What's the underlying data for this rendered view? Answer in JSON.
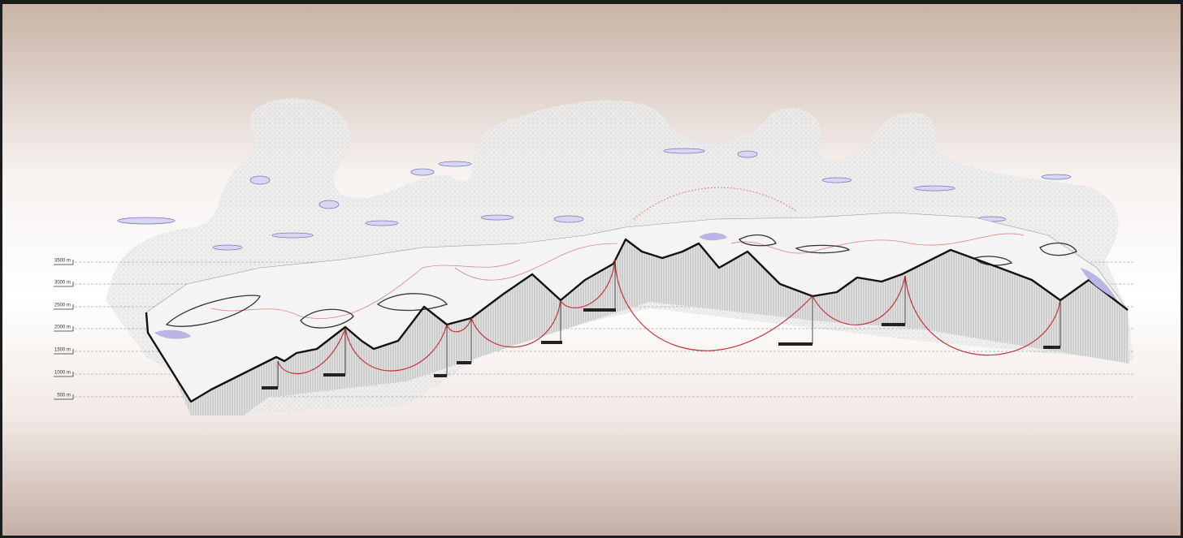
{
  "elevation_axis": {
    "labels": [
      "3500 m",
      "3000 m",
      "2500 m",
      "2000 m",
      "1500 m",
      "1000 m",
      "500 m"
    ]
  }
}
